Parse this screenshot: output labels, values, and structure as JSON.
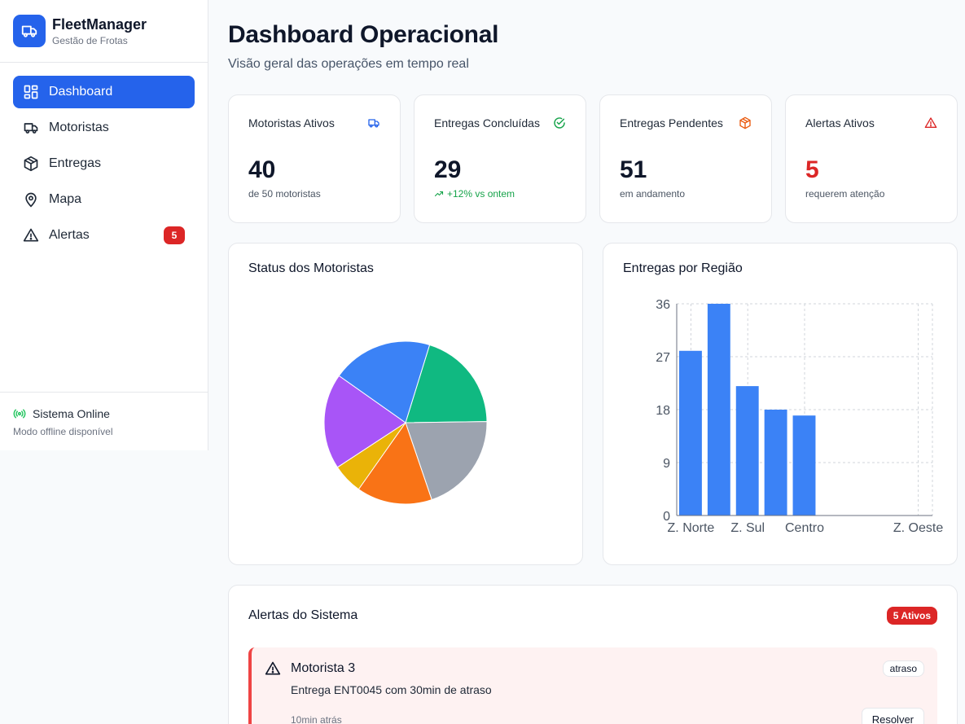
{
  "brand": {
    "name": "FleetManager",
    "subtitle": "Gestão de Frotas",
    "color": "#2563eb"
  },
  "nav": {
    "items": [
      {
        "label": "Dashboard",
        "icon": "grid-icon",
        "active": true
      },
      {
        "label": "Motoristas",
        "icon": "truck-icon"
      },
      {
        "label": "Entregas",
        "icon": "package-icon"
      },
      {
        "label": "Mapa",
        "icon": "map-pin-icon"
      },
      {
        "label": "Alertas",
        "icon": "alert-triangle-icon",
        "badge": "5"
      }
    ]
  },
  "footer": {
    "status": "Sistema Online",
    "note": "Modo offline disponível"
  },
  "header": {
    "title": "Dashboard Operacional",
    "subtitle": "Visão geral das operações em tempo real"
  },
  "stats": [
    {
      "title": "Motoristas Ativos",
      "value": "40",
      "sub": "de 50 motoristas",
      "icon": "truck-icon",
      "icon_color": "#2563eb"
    },
    {
      "title": "Entregas Concluídas",
      "value": "29",
      "sub": "+12% vs ontem",
      "icon": "check-circle-icon",
      "icon_color": "#16a34a"
    },
    {
      "title": "Entregas Pendentes",
      "value": "51",
      "sub": "em andamento",
      "icon": "package-icon",
      "icon_color": "#ea580c"
    },
    {
      "title": "Alertas Ativos",
      "value": "5",
      "sub": "requerem atenção",
      "icon": "alert-triangle-icon",
      "icon_color": "#dc2626"
    }
  ],
  "charts": {
    "status_title": "Status dos Motoristas",
    "region_title": "Entregas por Região"
  },
  "chart_data": [
    {
      "type": "pie",
      "title": "Status dos Motoristas",
      "slices": [
        {
          "value": 20,
          "color": "#10b981"
        },
        {
          "value": 20,
          "color": "#9ca3af"
        },
        {
          "value": 15,
          "color": "#f97316"
        },
        {
          "value": 6,
          "color": "#eab308"
        },
        {
          "value": 19,
          "color": "#a855f7"
        },
        {
          "value": 20,
          "color": "#3b82f6"
        }
      ]
    },
    {
      "type": "bar",
      "title": "Entregas por Região",
      "categories": [
        "Z. Norte",
        "",
        "Z. Sul",
        "",
        "Centro",
        "",
        "",
        "",
        "Z. Oeste"
      ],
      "values": [
        28,
        36,
        22,
        18,
        17,
        0,
        0,
        0,
        0
      ],
      "ylim": [
        0,
        36
      ],
      "yticks": [
        "0",
        "9",
        "18",
        "27",
        "36"
      ],
      "grid": true,
      "color": "#3b82f6"
    }
  ],
  "alerts": {
    "title": "Alertas do Sistema",
    "badge": "5 Ativos",
    "items": [
      {
        "title": "Motorista 3",
        "type": "atraso",
        "message": "Entrega ENT0045 com 30min de atraso",
        "time": "10min atrás",
        "action": "Resolver"
      }
    ]
  }
}
